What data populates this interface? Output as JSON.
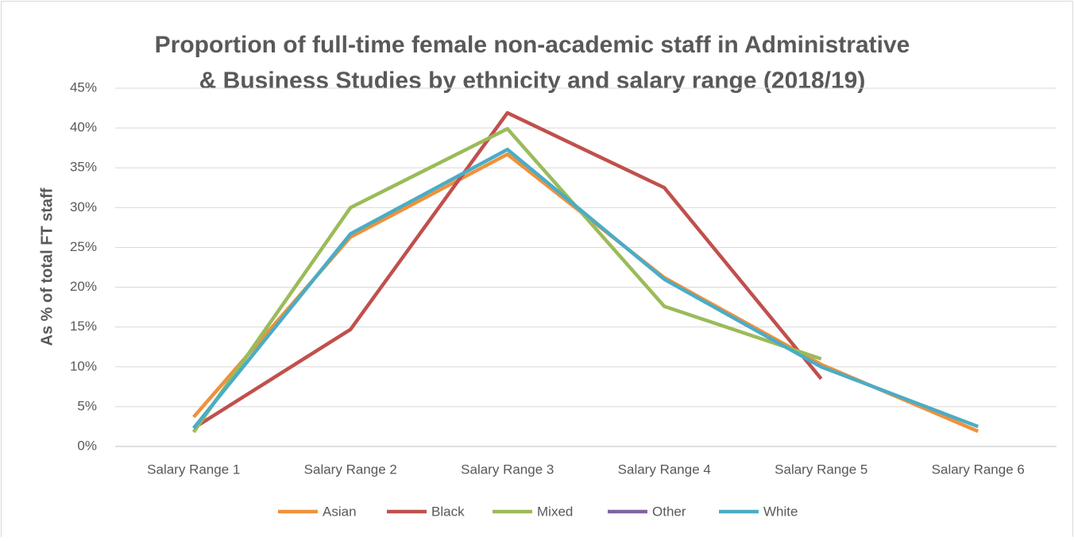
{
  "chart_data": {
    "type": "line",
    "title": [
      "Proportion of full-time female non-academic staff in Administrative",
      "& Business Studies by ethnicity and salary range (2018/19)"
    ],
    "y_label": "As % of total FT staff",
    "categories": [
      "Salary Range 1",
      "Salary Range 2",
      "Salary Range 3",
      "Salary Range 4",
      "Salary Range 5",
      "Salary Range 6"
    ],
    "series": [
      {
        "name": "Asian",
        "color": "#f0913a",
        "values": [
          3.7,
          26.3,
          36.7,
          21.2,
          10.3,
          1.9
        ]
      },
      {
        "name": "Black",
        "color": "#c0504d",
        "values": [
          2.3,
          14.7,
          41.9,
          32.5,
          8.5,
          null
        ]
      },
      {
        "name": "Mixed",
        "color": "#9bbb59",
        "values": [
          1.8,
          30.0,
          39.9,
          17.6,
          11.0,
          null
        ]
      },
      {
        "name": "Other",
        "color": "#8064a2",
        "values": [
          null,
          null,
          null,
          null,
          null,
          null
        ]
      },
      {
        "name": "White",
        "color": "#4bacc6",
        "values": [
          2.3,
          26.7,
          37.3,
          21.0,
          10.0,
          2.5
        ]
      }
    ],
    "ylim": [
      0,
      45
    ],
    "yticks": [
      {
        "value": 0,
        "label": "0%"
      },
      {
        "value": 5,
        "label": "5%"
      },
      {
        "value": 10,
        "label": "10%"
      },
      {
        "value": 15,
        "label": "15%"
      },
      {
        "value": 20,
        "label": "20%"
      },
      {
        "value": 25,
        "label": "25%"
      },
      {
        "value": 30,
        "label": "30%"
      },
      {
        "value": 35,
        "label": "35%"
      },
      {
        "value": 40,
        "label": "40%"
      },
      {
        "value": 45,
        "label": "45%"
      }
    ],
    "grid": true,
    "legend": "bottom"
  }
}
